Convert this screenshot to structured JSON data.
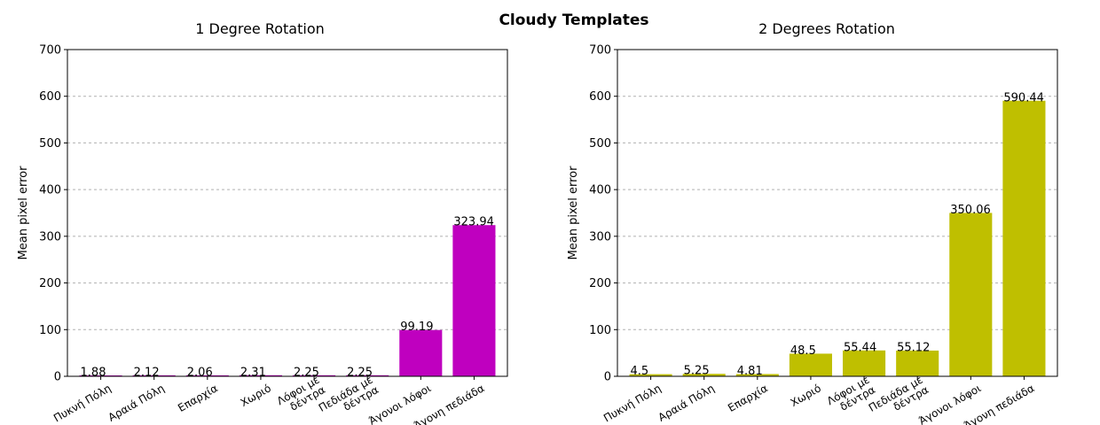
{
  "figure": {
    "title": "Cloudy Templates",
    "bar_colors": [
      "#bf00bf",
      "#bfbf00"
    ]
  },
  "chart_data": [
    {
      "type": "bar",
      "title": "1 Degree Rotation",
      "xlabel": "",
      "ylabel": "Mean pixel error",
      "ylim": [
        0,
        700
      ],
      "yticks": [
        0,
        100,
        200,
        300,
        400,
        500,
        600,
        700
      ],
      "grid": "y-dashed",
      "categories": [
        [
          "Πυκνή Πόλη"
        ],
        [
          "Αραιά Πόλη"
        ],
        [
          "Επαρχία"
        ],
        [
          "Χωριό"
        ],
        [
          "Λόφοι με",
          "δέντρα"
        ],
        [
          "Πεδιάδα με",
          "δέντρα"
        ],
        [
          "Άγονοι λόφοι"
        ],
        [
          "Άγονη πεδιάδα"
        ]
      ],
      "values": [
        1.88,
        2.12,
        2.06,
        2.31,
        2.25,
        2.25,
        99.19,
        323.94
      ],
      "data_labels": [
        "1.88",
        "2.12",
        "2.06",
        "2.31",
        "2.25",
        "2.25",
        "99.19",
        "323.94"
      ],
      "color": "#bf00bf"
    },
    {
      "type": "bar",
      "title": "2 Degrees Rotation",
      "xlabel": "",
      "ylabel": "Mean pixel error",
      "ylim": [
        0,
        700
      ],
      "yticks": [
        0,
        100,
        200,
        300,
        400,
        500,
        600,
        700
      ],
      "grid": "y-dashed",
      "categories": [
        [
          "Πυκνή Πόλη"
        ],
        [
          "Αραιά Πόλη"
        ],
        [
          "Επαρχία"
        ],
        [
          "Χωριό"
        ],
        [
          "Λόφοι με",
          "δέντρα"
        ],
        [
          "Πεδιάδα με",
          "δέντρα"
        ],
        [
          "Άγονοι λόφοι"
        ],
        [
          "Άγονη πεδιάδα"
        ]
      ],
      "values": [
        4.5,
        5.25,
        4.81,
        48.5,
        55.44,
        55.12,
        350.06,
        590.44
      ],
      "data_labels": [
        "4.5",
        "5.25",
        "4.81",
        "48.5",
        "55.44",
        "55.12",
        "350.06",
        "590.44"
      ],
      "color": "#bfbf00"
    }
  ]
}
